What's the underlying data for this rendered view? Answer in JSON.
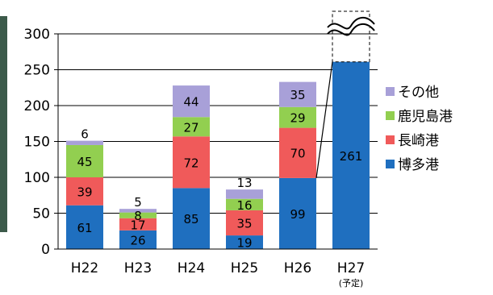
{
  "chart_data": {
    "type": "bar",
    "stacked": true,
    "title": "",
    "xlabel": "",
    "ylabel": "",
    "ylim": [
      0,
      300
    ],
    "yticks": [
      0,
      50,
      100,
      150,
      200,
      250,
      300
    ],
    "grid": true,
    "legend_position": "right",
    "categories": [
      "H22",
      "H23",
      "H24",
      "H25",
      "H26",
      "H27"
    ],
    "category_notes": [
      "",
      "",
      "",
      "",
      "",
      "(予定)"
    ],
    "series": [
      {
        "name": "博多港",
        "color": "#1f6fbf",
        "values": [
          61,
          26,
          85,
          19,
          99,
          261
        ]
      },
      {
        "name": "長崎港",
        "color": "#f05a5a",
        "values": [
          39,
          17,
          72,
          35,
          70,
          null
        ]
      },
      {
        "name": "鹿児島港",
        "color": "#92cf50",
        "values": [
          45,
          8,
          27,
          16,
          29,
          null
        ]
      },
      {
        "name": "その他",
        "color": "#a8a0d8",
        "values": [
          6,
          5,
          44,
          13,
          35,
          null
        ]
      }
    ],
    "legend_order": [
      "その他",
      "鹿児島港",
      "長崎港",
      "博多港"
    ]
  }
}
